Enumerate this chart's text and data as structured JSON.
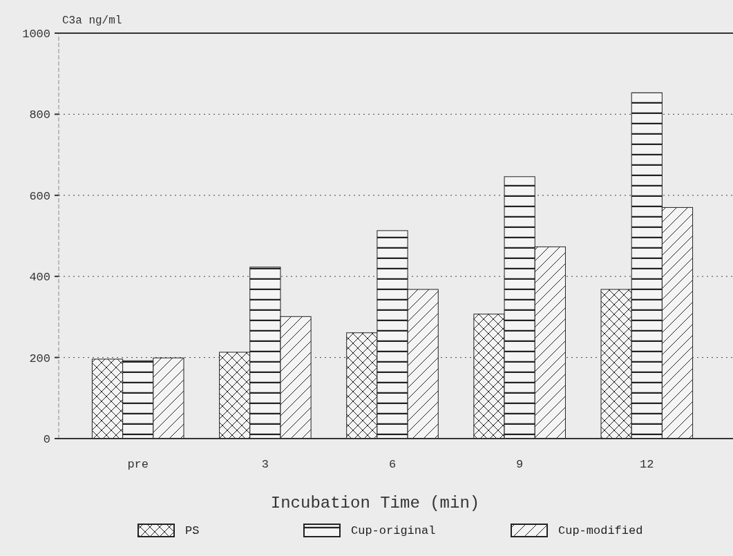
{
  "chart_data": {
    "type": "bar",
    "ylabel": "C3a ng/ml",
    "xlabel": "Incubation Time (min)",
    "categories": [
      "pre",
      "3",
      "6",
      "9",
      "12"
    ],
    "series": [
      {
        "name": "PS",
        "color": "#222222",
        "values": [
          196,
          213,
          261,
          307,
          368
        ]
      },
      {
        "name": "Cup-original",
        "color": "#222222",
        "values": [
          192,
          423,
          513,
          646,
          853
        ]
      },
      {
        "name": "Cup-modified",
        "color": "#222222",
        "values": [
          199,
          301,
          368,
          473,
          570
        ]
      }
    ],
    "ylim": [
      0,
      1000
    ],
    "yticks": [
      0,
      200,
      400,
      600,
      800,
      1000
    ],
    "grid": "y",
    "legend": "bottom"
  }
}
